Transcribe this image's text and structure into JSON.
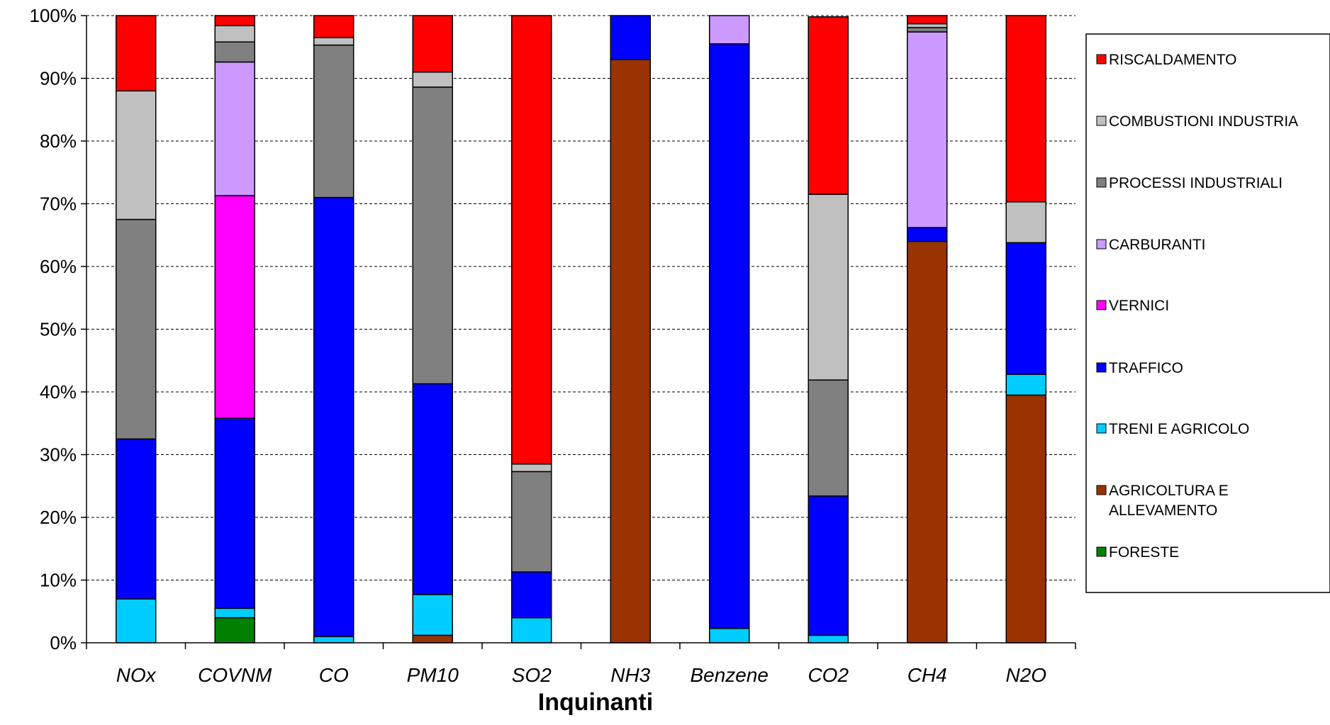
{
  "chart_data": {
    "type": "bar",
    "stacked": "percent",
    "title": "",
    "xlabel": "Inquinanti",
    "ylabel": "",
    "ylim": [
      0,
      100
    ],
    "yticks": [
      "0%",
      "10%",
      "20%",
      "30%",
      "40%",
      "50%",
      "60%",
      "70%",
      "80%",
      "90%",
      "100%"
    ],
    "grid": true,
    "legend_position": "right",
    "categories": [
      "NOx",
      "COVNM",
      "CO",
      "PM10",
      "SO2",
      "NH3",
      "Benzene",
      "CO2",
      "CH4",
      "N2O"
    ],
    "series": [
      {
        "name": "FORESTE",
        "color": "#008000",
        "values": [
          0,
          4,
          0,
          0,
          0,
          0,
          0,
          0,
          0,
          0
        ]
      },
      {
        "name": "AGRICOLTURA E ALLEVAMENTO",
        "color": "#993300",
        "values": [
          0,
          0,
          0,
          1.2,
          0,
          93,
          0,
          0,
          64,
          39.5
        ]
      },
      {
        "name": "TRENI E AGRICOLO",
        "color": "#00CCFF",
        "values": [
          7,
          1.5,
          1,
          6.5,
          4,
          0,
          2.3,
          1.2,
          0,
          3.3
        ]
      },
      {
        "name": "TRAFFICO",
        "color": "#0000FF",
        "values": [
          25.5,
          30.3,
          70,
          33.6,
          7.3,
          7,
          93.2,
          22.2,
          2.2,
          21
        ]
      },
      {
        "name": "VERNICI",
        "color": "#FF00FF",
        "values": [
          0,
          35.5,
          0,
          0,
          0,
          0,
          0,
          0,
          0,
          0
        ]
      },
      {
        "name": "CARBURANTI",
        "color": "#CC99FF",
        "values": [
          0,
          21.3,
          0,
          0,
          0,
          0,
          4.5,
          0,
          31.2,
          0
        ]
      },
      {
        "name": "PROCESSI INDUSTRIALI",
        "color": "#808080",
        "values": [
          35,
          3.2,
          24.3,
          47.3,
          16,
          0,
          0,
          18.5,
          0.7,
          0
        ]
      },
      {
        "name": "COMBUSTIONI INDUSTRIA",
        "color": "#C0C0C0",
        "values": [
          20.5,
          2.6,
          1.2,
          2.4,
          1.2,
          0,
          0,
          29.6,
          0.6,
          6.5
        ]
      },
      {
        "name": "RISCALDAMENTO",
        "color": "#FF0000",
        "values": [
          12,
          1.6,
          3.5,
          9,
          71.5,
          0,
          0,
          28.3,
          1.3,
          29.7
        ]
      }
    ],
    "legend_order": [
      "RISCALDAMENTO",
      "COMBUSTIONI INDUSTRIA",
      "PROCESSI INDUSTRIALI",
      "CARBURANTI",
      "VERNICI",
      "TRAFFICO",
      "TRENI E AGRICOLO",
      "AGRICOLTURA E ALLEVAMENTO",
      "FORESTE"
    ]
  }
}
